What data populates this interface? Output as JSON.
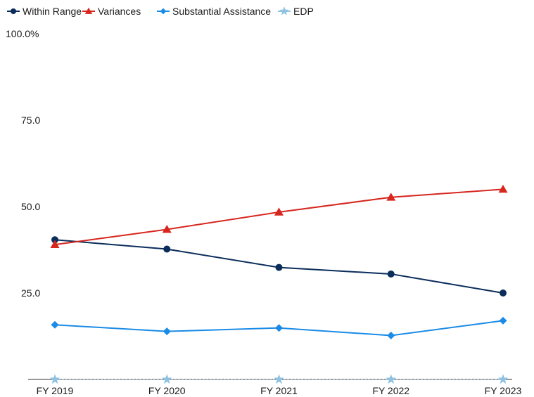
{
  "chart_data": {
    "type": "line",
    "categories": [
      "FY 2019",
      "FY 2020",
      "FY 2021",
      "FY 2022",
      "FY 2023"
    ],
    "ylim": [
      0,
      100
    ],
    "y_ticks": [
      {
        "value": 100,
        "label": "100.0%"
      },
      {
        "value": 75,
        "label": "75.0"
      },
      {
        "value": 50,
        "label": "50.0"
      },
      {
        "value": 25,
        "label": "25.0"
      }
    ],
    "grid": false,
    "legend_position": "top-left",
    "series": [
      {
        "name": "Within Range",
        "color": "#0b2d5b",
        "marker": "circle",
        "values": [
          40.4,
          37.7,
          32.4,
          30.5,
          25.0
        ]
      },
      {
        "name": "Variances",
        "color": "#d7261e",
        "marker": "triangle",
        "values": [
          39.0,
          43.4,
          48.4,
          52.7,
          55.0
        ]
      },
      {
        "name": "Substantial Assistance",
        "color": "#1a8be6",
        "marker": "diamond",
        "values": [
          15.8,
          13.9,
          14.9,
          12.7,
          17.0
        ]
      },
      {
        "name": "EDP",
        "color": "#8fc3e3",
        "marker": "star",
        "values": [
          0,
          0,
          0,
          0,
          0
        ]
      }
    ]
  }
}
